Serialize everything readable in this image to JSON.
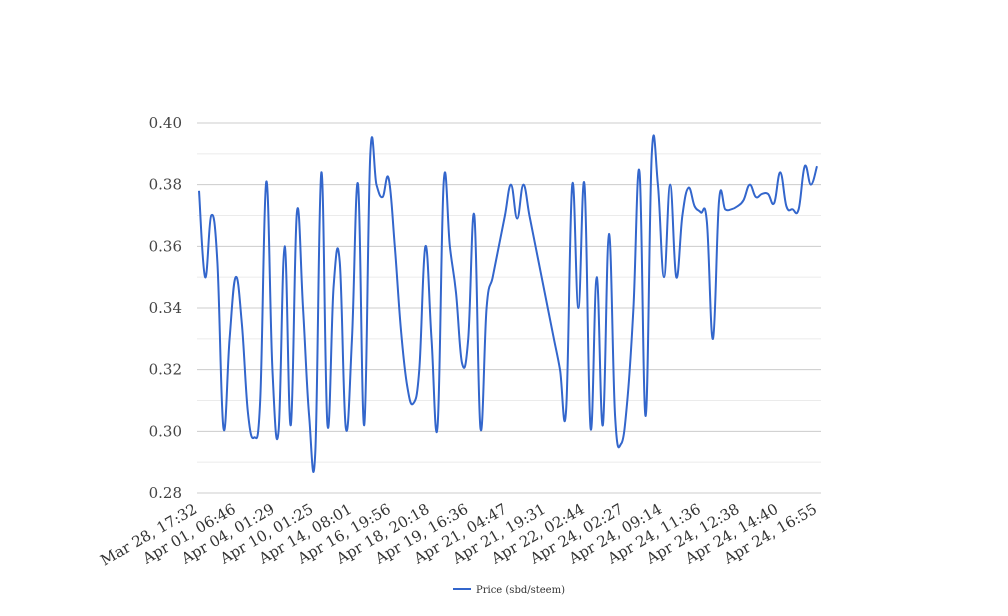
{
  "chart_data": {
    "type": "line",
    "ylim": [
      0.28,
      0.4
    ],
    "y_ticks": [
      "0.28",
      "0.30",
      "0.32",
      "0.34",
      "0.36",
      "0.38",
      "0.40"
    ],
    "y_minor_gridlines": true,
    "x_tick_labels": [
      "Mar 28, 17:32",
      "Apr 01, 06:46",
      "Apr 04, 01:29",
      "Apr 10, 01:25",
      "Apr 14, 08:01",
      "Apr 16, 19:56",
      "Apr 18, 20:18",
      "Apr 19, 16:36",
      "Apr 21, 04:47",
      "Apr 21, 19:31",
      "Apr 22, 02:44",
      "Apr 24, 02:27",
      "Apr 24, 09:14",
      "Apr 24, 11:36",
      "Apr 24, 12:38",
      "Apr 24, 14:40",
      "Apr 24, 16:55"
    ],
    "legend_position": "bottom-center",
    "series": [
      {
        "name": "Price (sbd/steem)",
        "color": "#3366cc",
        "values": [
          0.378,
          0.35,
          0.37,
          0.355,
          0.301,
          0.33,
          0.35,
          0.335,
          0.306,
          0.298,
          0.31,
          0.381,
          0.32,
          0.3,
          0.36,
          0.302,
          0.371,
          0.34,
          0.305,
          0.293,
          0.384,
          0.302,
          0.347,
          0.355,
          0.301,
          0.33,
          0.38,
          0.302,
          0.39,
          0.38,
          0.376,
          0.382,
          0.36,
          0.333,
          0.315,
          0.309,
          0.32,
          0.36,
          0.33,
          0.302,
          0.381,
          0.36,
          0.345,
          0.322,
          0.33,
          0.37,
          0.301,
          0.34,
          0.35,
          0.36,
          0.37,
          0.38,
          0.369,
          0.38,
          0.37,
          0.36,
          0.35,
          0.34,
          0.33,
          0.32,
          0.307,
          0.38,
          0.34,
          0.38,
          0.301,
          0.35,
          0.302,
          0.364,
          0.305,
          0.296,
          0.31,
          0.34,
          0.384,
          0.305,
          0.39,
          0.38,
          0.35,
          0.38,
          0.35,
          0.37,
          0.379,
          0.373,
          0.371,
          0.368,
          0.33,
          0.375,
          0.372,
          0.372,
          0.373,
          0.375,
          0.38,
          0.376,
          0.377,
          0.377,
          0.374,
          0.384,
          0.373,
          0.372,
          0.372,
          0.386,
          0.38,
          0.386
        ]
      }
    ]
  }
}
